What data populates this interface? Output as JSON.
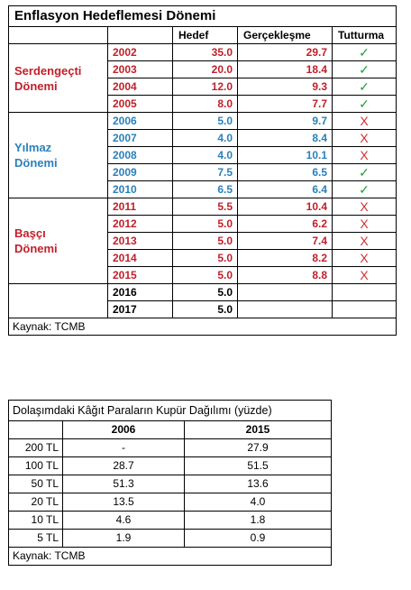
{
  "table1": {
    "title": "Enflasyon Hedeflemesi Dönemi",
    "headers": [
      "Hedef",
      "Gerçekleşme",
      "Tutturma"
    ],
    "source": "Kaynak: TCMB",
    "eras": [
      {
        "name_line1": "Serdengeçti",
        "name_line2": "Dönemi",
        "color": "#c0202a",
        "rows": [
          {
            "year": "2002",
            "target": "35.0",
            "actual": "29.7",
            "mark": "✓"
          },
          {
            "year": "2003",
            "target": "20.0",
            "actual": "18.4",
            "mark": "✓"
          },
          {
            "year": "2004",
            "target": "12.0",
            "actual": "9.3",
            "mark": "✓"
          },
          {
            "year": "2005",
            "target": "8.0",
            "actual": "7.7",
            "mark": "✓"
          }
        ]
      },
      {
        "name_line1": "Yılmaz",
        "name_line2": "Dönemi",
        "color": "#2980b9",
        "rows": [
          {
            "year": "2006",
            "target": "5.0",
            "actual": "9.7",
            "mark": "X"
          },
          {
            "year": "2007",
            "target": "4.0",
            "actual": "8.4",
            "mark": "X"
          },
          {
            "year": "2008",
            "target": "4.0",
            "actual": "10.1",
            "mark": "X"
          },
          {
            "year": "2009",
            "target": "7.5",
            "actual": "6.5",
            "mark": "✓"
          },
          {
            "year": "2010",
            "target": "6.5",
            "actual": "6.4",
            "mark": "✓"
          }
        ]
      },
      {
        "name_line1": "Başçı",
        "name_line2": "Dönemi",
        "color": "#c0202a",
        "rows": [
          {
            "year": "2011",
            "target": "5.5",
            "actual": "10.4",
            "mark": "X"
          },
          {
            "year": "2012",
            "target": "5.0",
            "actual": "6.2",
            "mark": "X"
          },
          {
            "year": "2013",
            "target": "5.0",
            "actual": "7.4",
            "mark": "X"
          },
          {
            "year": "2014",
            "target": "5.0",
            "actual": "8.2",
            "mark": "X"
          },
          {
            "year": "2015",
            "target": "5.0",
            "actual": "8.8",
            "mark": "X"
          }
        ]
      },
      {
        "name_line1": "",
        "name_line2": "",
        "color": "#000000",
        "rows": [
          {
            "year": "2016",
            "target": "5.0",
            "actual": "",
            "mark": ""
          },
          {
            "year": "2017",
            "target": "5.0",
            "actual": "",
            "mark": ""
          }
        ]
      }
    ],
    "mark_colors": {
      "✓": "#1f9e3a",
      "X": "#d23030"
    }
  },
  "table2": {
    "title": "Dolaşımdaki Kâğıt Paraların Kupür Dağılımı (yüzde)",
    "headers": [
      "2006",
      "2015"
    ],
    "rows": [
      {
        "label": "200 TL",
        "v2006": "-",
        "v2015": "27.9"
      },
      {
        "label": "100 TL",
        "v2006": "28.7",
        "v2015": "51.5"
      },
      {
        "label": "50 TL",
        "v2006": "51.3",
        "v2015": "13.6"
      },
      {
        "label": "20 TL",
        "v2006": "13.5",
        "v2015": "4.0"
      },
      {
        "label": "10 TL",
        "v2006": "4.6",
        "v2015": "1.8"
      },
      {
        "label": "5 TL",
        "v2006": "1.9",
        "v2015": "0.9"
      }
    ],
    "source": "Kaynak: TCMB"
  }
}
